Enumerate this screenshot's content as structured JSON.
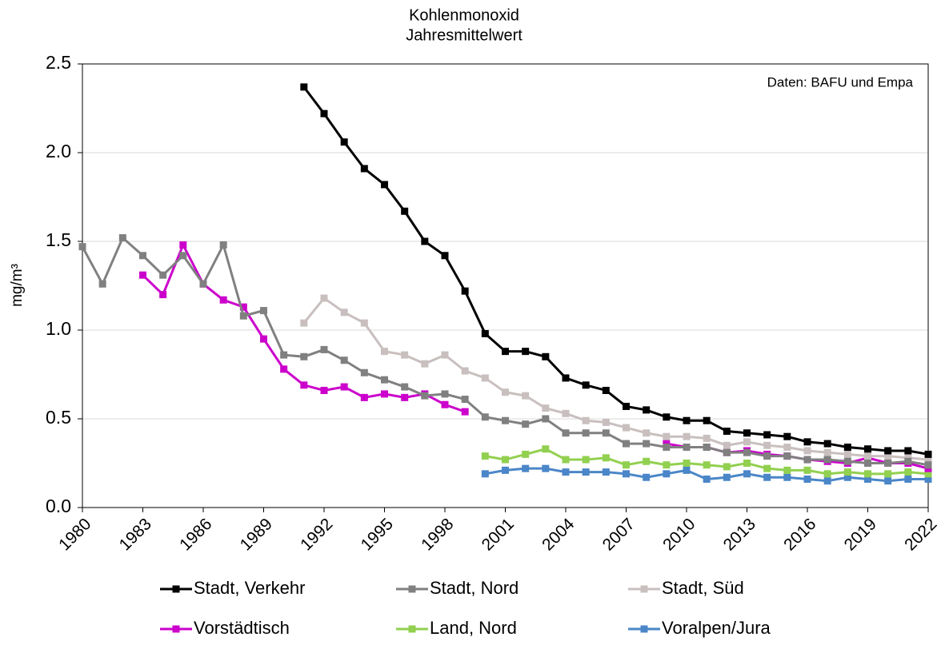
{
  "chart_data": {
    "type": "line",
    "title": "Kohlenmonoxid",
    "subtitle": "Jahresmittelwert",
    "ylabel": "mg/m³",
    "annotation": "Daten: BAFU und Empa",
    "x": [
      1980,
      1981,
      1982,
      1983,
      1984,
      1985,
      1986,
      1987,
      1988,
      1989,
      1990,
      1991,
      1992,
      1993,
      1994,
      1995,
      1996,
      1997,
      1998,
      1999,
      2000,
      2001,
      2002,
      2003,
      2004,
      2005,
      2006,
      2007,
      2008,
      2009,
      2010,
      2011,
      2012,
      2013,
      2014,
      2015,
      2016,
      2017,
      2018,
      2019,
      2020,
      2021,
      2022
    ],
    "xlim": [
      1980,
      2022
    ],
    "xticks": [
      1980,
      1983,
      1986,
      1989,
      1992,
      1995,
      1998,
      2001,
      2004,
      2007,
      2010,
      2013,
      2016,
      2019,
      2022
    ],
    "ylim": [
      0,
      2.5
    ],
    "yticks": [
      {
        "value": 0,
        "label": "0.0"
      },
      0.5,
      {
        "value": 1,
        "label": "1.0"
      },
      1.5,
      {
        "value": 2,
        "label": "2.0"
      },
      2.5
    ],
    "grid": true,
    "legend": "bottom",
    "series": [
      {
        "name": "Stadt, Verkehr",
        "color": "#000000",
        "values": [
          null,
          null,
          null,
          null,
          null,
          null,
          null,
          null,
          null,
          null,
          null,
          2.37,
          2.22,
          2.06,
          1.91,
          1.82,
          1.67,
          1.5,
          1.42,
          1.22,
          0.98,
          0.88,
          0.88,
          0.85,
          0.73,
          0.69,
          0.66,
          0.57,
          0.55,
          0.51,
          0.49,
          0.49,
          0.43,
          0.42,
          0.41,
          0.4,
          0.37,
          0.36,
          0.34,
          0.33,
          0.32,
          0.32,
          0.3
        ]
      },
      {
        "name": "Stadt, Nord",
        "color": "#808080",
        "values": [
          1.47,
          1.26,
          1.52,
          1.42,
          1.31,
          1.42,
          1.26,
          1.48,
          1.08,
          1.11,
          0.86,
          0.85,
          0.89,
          0.83,
          0.76,
          0.72,
          0.68,
          0.63,
          0.64,
          0.61,
          0.51,
          0.49,
          0.47,
          0.5,
          0.42,
          0.42,
          0.42,
          0.36,
          0.36,
          0.34,
          0.34,
          0.34,
          0.31,
          0.31,
          0.29,
          0.29,
          0.27,
          0.27,
          0.26,
          0.25,
          0.25,
          0.26,
          0.24
        ]
      },
      {
        "name": "Stadt, Süd",
        "color": "#c9bfbf",
        "values": [
          null,
          null,
          null,
          null,
          null,
          null,
          null,
          null,
          null,
          null,
          null,
          1.04,
          1.18,
          1.1,
          1.04,
          0.88,
          0.86,
          0.81,
          0.86,
          0.77,
          0.73,
          0.65,
          0.63,
          0.56,
          0.53,
          0.49,
          0.48,
          0.45,
          0.42,
          0.4,
          0.4,
          0.39,
          0.35,
          0.37,
          0.35,
          0.34,
          0.32,
          0.31,
          0.3,
          0.29,
          0.29,
          0.28,
          0.27
        ]
      },
      {
        "name": "Vorstädtisch",
        "color": "#cc00cc",
        "values": [
          null,
          null,
          null,
          1.31,
          1.2,
          1.48,
          1.26,
          1.17,
          1.13,
          0.95,
          0.78,
          0.69,
          0.66,
          0.68,
          0.62,
          0.64,
          0.62,
          0.64,
          0.58,
          0.54,
          null,
          null,
          null,
          null,
          null,
          null,
          null,
          null,
          null,
          0.36,
          0.34,
          0.34,
          0.31,
          0.32,
          0.3,
          0.29,
          0.27,
          0.26,
          0.25,
          0.28,
          0.25,
          0.25,
          0.22
        ]
      },
      {
        "name": "Land, Nord",
        "color": "#92d050",
        "values": [
          null,
          null,
          null,
          null,
          null,
          null,
          null,
          null,
          null,
          null,
          null,
          null,
          null,
          null,
          null,
          null,
          null,
          null,
          null,
          null,
          0.29,
          0.27,
          0.3,
          0.33,
          0.27,
          0.27,
          0.28,
          0.24,
          0.26,
          0.24,
          0.25,
          0.24,
          0.23,
          0.25,
          0.22,
          0.21,
          0.21,
          0.19,
          0.2,
          0.19,
          0.19,
          0.2,
          0.19
        ]
      },
      {
        "name": "Voralpen/Jura",
        "color": "#4a86c8",
        "values": [
          null,
          null,
          null,
          null,
          null,
          null,
          null,
          null,
          null,
          null,
          null,
          null,
          null,
          null,
          null,
          null,
          null,
          null,
          null,
          null,
          0.19,
          0.21,
          0.22,
          0.22,
          0.2,
          0.2,
          0.2,
          0.19,
          0.17,
          0.19,
          0.21,
          0.16,
          0.17,
          0.19,
          0.17,
          0.17,
          0.16,
          0.15,
          0.17,
          0.16,
          0.15,
          0.16,
          0.16
        ]
      }
    ]
  }
}
